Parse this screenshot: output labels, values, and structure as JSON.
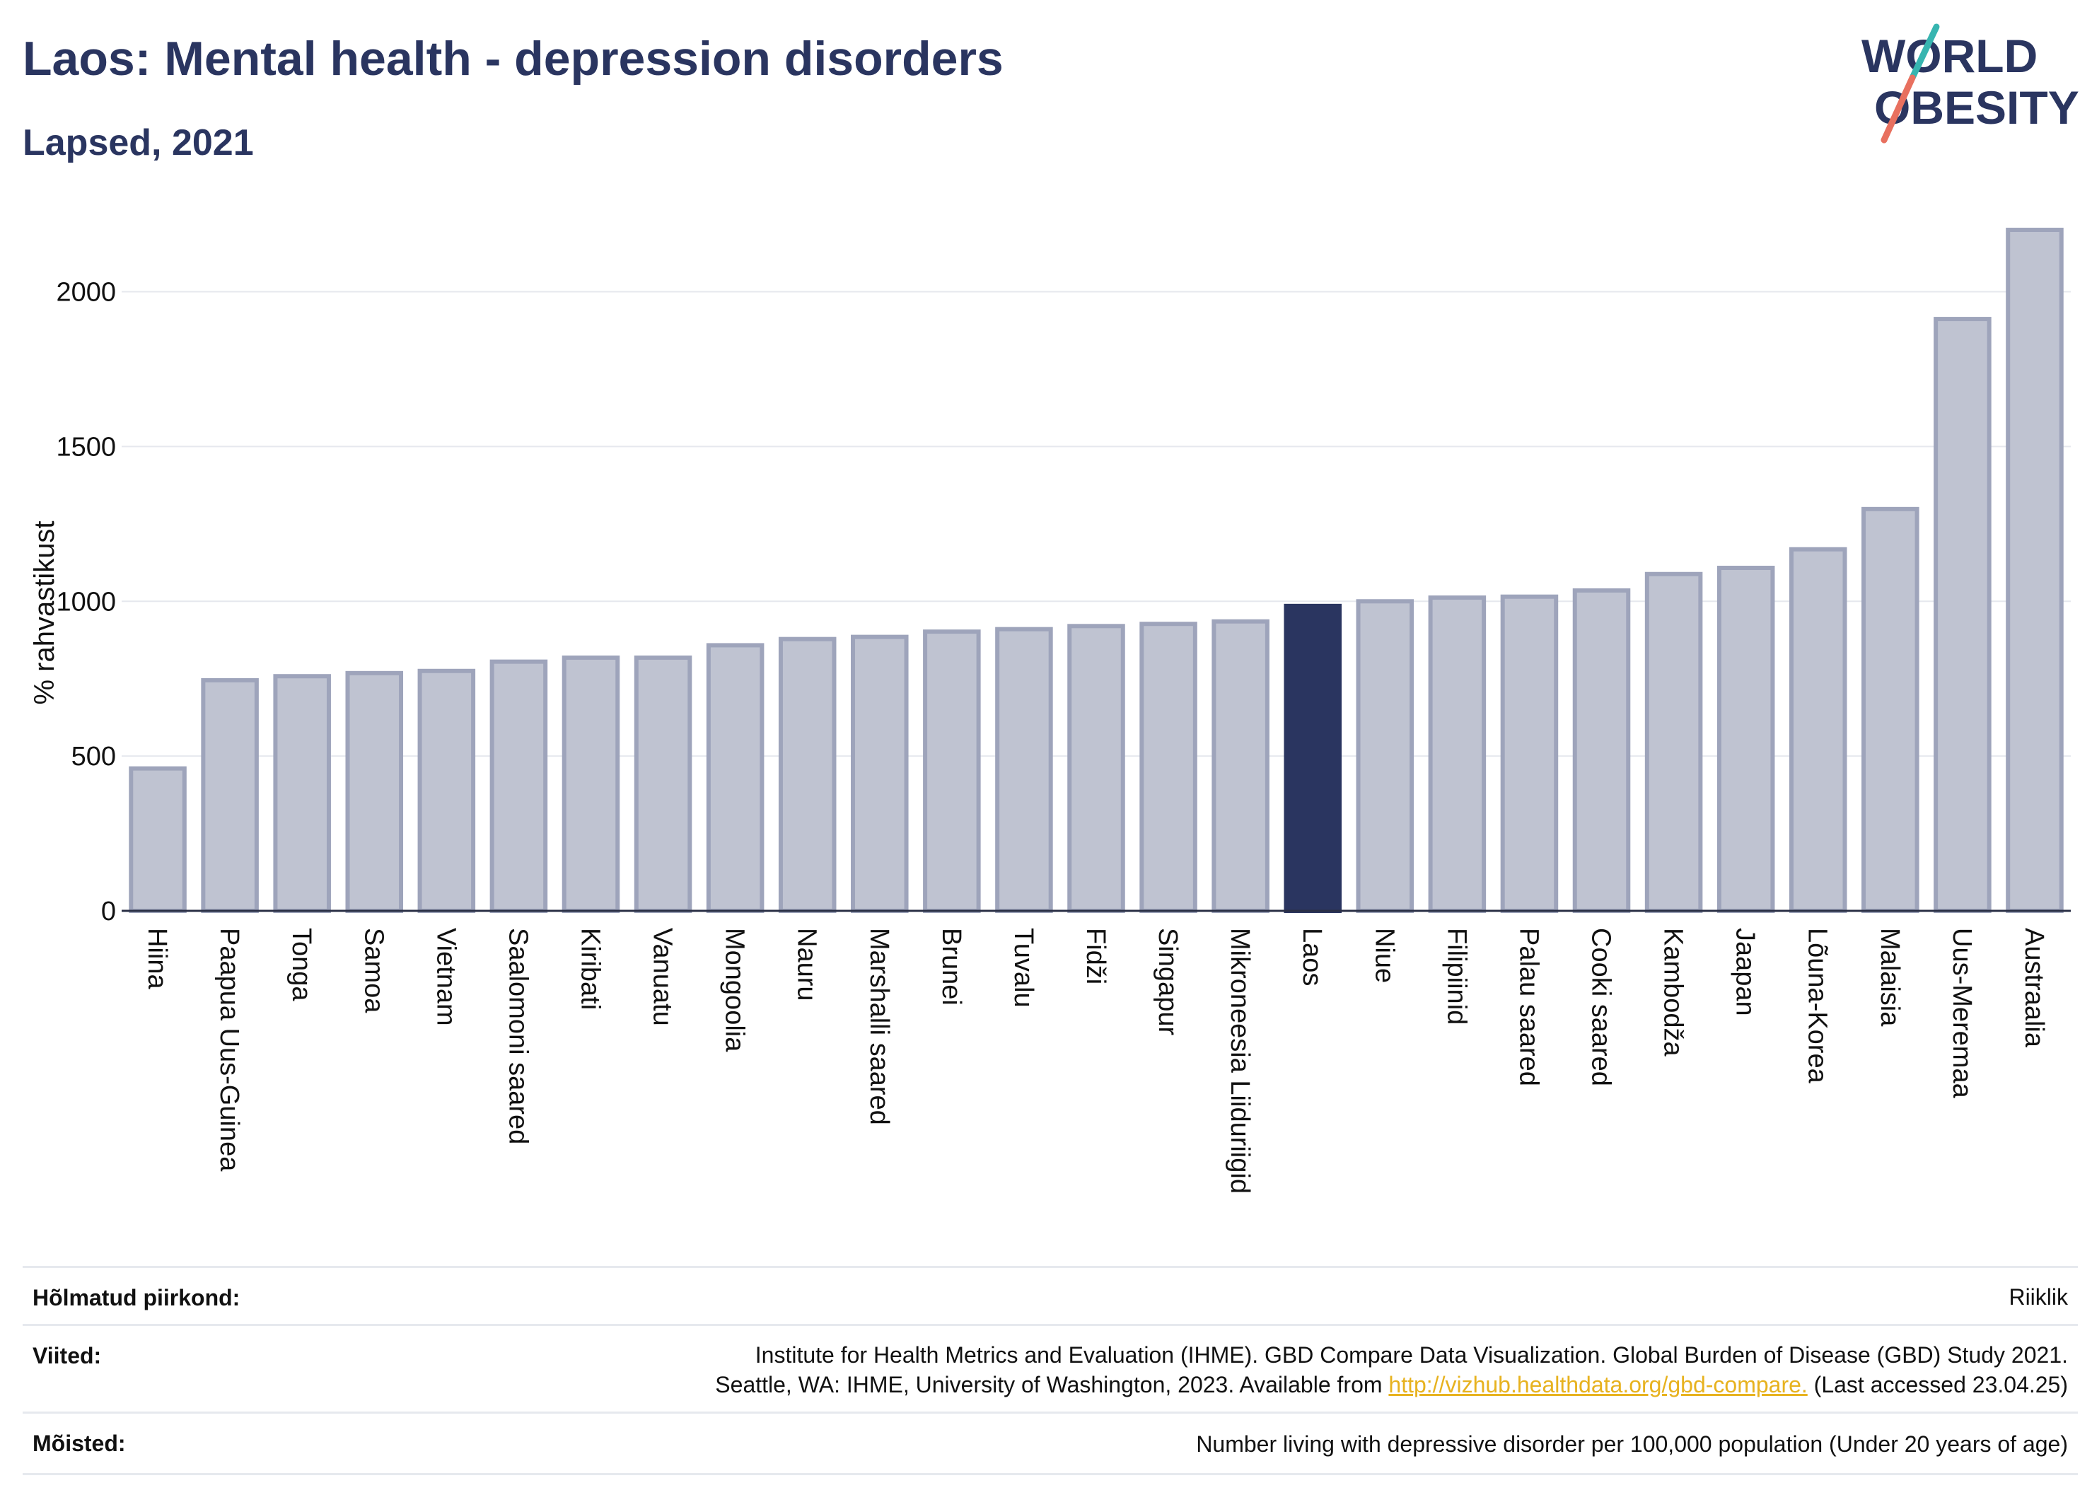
{
  "header": {
    "title": "Laos: Mental health - depression disorders",
    "subtitle": "Lapsed, 2021",
    "logo_line1": "WORLD",
    "logo_line2": "OBESITY"
  },
  "colors": {
    "bar": "#bfc3d1",
    "bar_stroke": "#9ea4bb",
    "highlight": "#2a3560",
    "logo_teal": "#37b5b0",
    "logo_coral": "#e8705f"
  },
  "chart_data": {
    "type": "bar",
    "title": "Laos: Mental health - depression disorders",
    "subtitle": "Lapsed, 2021",
    "ylabel": "% rahvastikust",
    "xlabel": "",
    "ylim": [
      0,
      2200
    ],
    "yticks": [
      0,
      500,
      1000,
      1500,
      2000
    ],
    "grid": true,
    "highlight": "Laos",
    "categories": [
      "Hiina",
      "Paapua Uus-Guinea",
      "Tonga",
      "Samoa",
      "Vietnam",
      "Saalomoni saared",
      "Kiribati",
      "Vanuatu",
      "Mongoolia",
      "Nauru",
      "Marshalli saared",
      "Brunei",
      "Tuvalu",
      "Fidži",
      "Singapur",
      "Mikroneesia Liiduriigid",
      "Laos",
      "Niue",
      "Filipiinid",
      "Palau saared",
      "Cooki saared",
      "Kambodža",
      "Jaapan",
      "Lõuna-Korea",
      "Malaisia",
      "Uus-Meremaa",
      "Austraalia"
    ],
    "values": [
      460,
      745,
      758,
      768,
      775,
      805,
      818,
      818,
      858,
      878,
      885,
      902,
      910,
      920,
      927,
      935,
      985,
      1000,
      1012,
      1015,
      1035,
      1088,
      1108,
      1168,
      1298,
      1912,
      2200
    ]
  },
  "info": {
    "region_label": "Hõlmatud piirkond:",
    "region_value": "Riiklik",
    "refs_label": "Viited:",
    "refs_line1": "Institute for Health Metrics and Evaluation (IHME). GBD Compare Data Visualization. Global Burden of Disease (GBD) Study 2021.",
    "refs_line2_prefix": "Seattle, WA: IHME, University of Washington, 2023. Available from",
    "refs_link": "http://vizhub.healthdata.org/gbd-compare.",
    "refs_line2_suffix": "(Last accessed 23.04.25)",
    "def_label": "Mõisted:",
    "def_value": "Number living with depressive disorder per 100,000 population (Under 20 years of age)"
  }
}
